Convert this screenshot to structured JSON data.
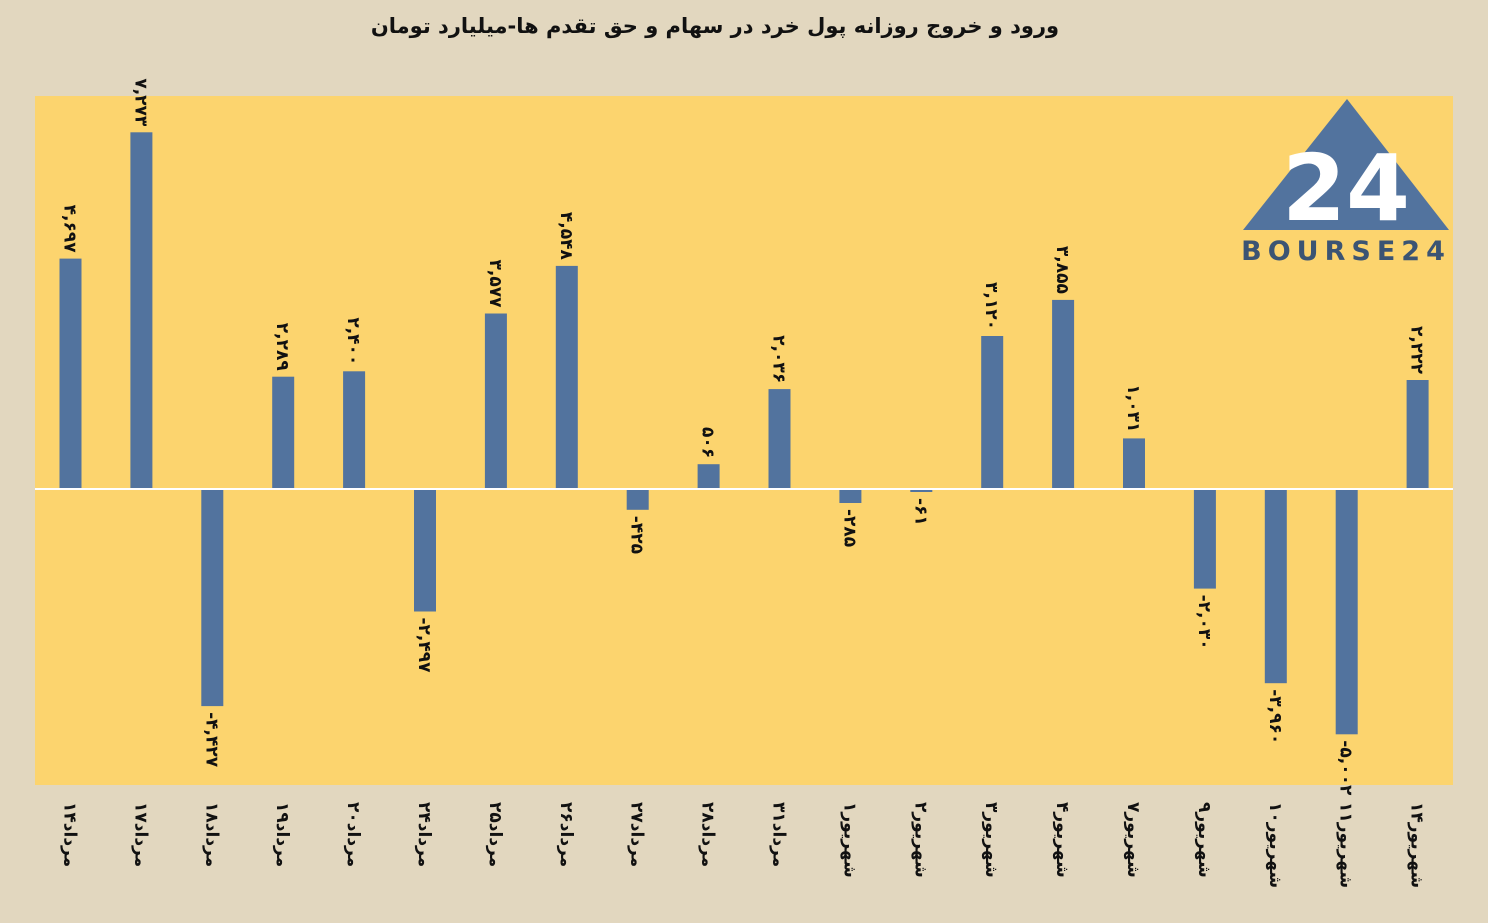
{
  "chart_data": {
    "type": "bar",
    "title": "ورود و خروج روزانه پول خرد در سهام و حق تقدم ها-میلیارد تومان",
    "xlabel": "",
    "ylabel": "",
    "ylim": [
      -6000,
      8000
    ],
    "grid": false,
    "legend": "none",
    "colors": {
      "bar": "#52739e",
      "plot_bg": "#fcd46e",
      "page_bg": "#e2d7bf",
      "zero_line": "#ffffff"
    },
    "categories": [
      "۱۴مرداد",
      "۱۷مرداد",
      "۱۸مرداد",
      "۱۹مرداد",
      "۲۰مرداد",
      "۲۴مرداد",
      "۲۵مرداد",
      "۲۶مرداد",
      "۲۷مرداد",
      "۲۸مرداد",
      "۳۱مرداد",
      "۱شهریور",
      "۲شهریور",
      "۳شهریور",
      "۴شهریور",
      "۷شهریور",
      "۹شهریور",
      "۱۰شهریور",
      "۱۱شهریور",
      "۱۴شهریور"
    ],
    "values": [
      4697,
      7273,
      -4427,
      2289,
      2400,
      -2497,
      3577,
      4548,
      -425,
      506,
      2036,
      -285,
      -61,
      3120,
      3855,
      1031,
      -2030,
      -3960,
      -5002,
      2222
    ],
    "value_labels": [
      "۴,۶۹۷",
      "۷,۲۷۳",
      "-۴,۴۲۷",
      "۲,۲۸۹",
      "۲,۴۰۰",
      "-۲,۴۹۷",
      "۳,۵۷۷",
      "۴,۵۴۸",
      "-۴۲۵",
      "۵۰۶",
      "۲,۰۳۶",
      "-۲۸۵",
      "-۶۱",
      "۳,۱۲۰",
      "۳,۸۵۵",
      "۱,۰۳۱",
      "-۲,۰۳۰",
      "-۳,۹۶۰",
      "-۵,۰۰۲",
      "۲,۲۲۲"
    ]
  },
  "logo": {
    "text": "BOURSE24",
    "mark": "24",
    "color": "#3b5473",
    "mark_color": "#ffffff"
  }
}
